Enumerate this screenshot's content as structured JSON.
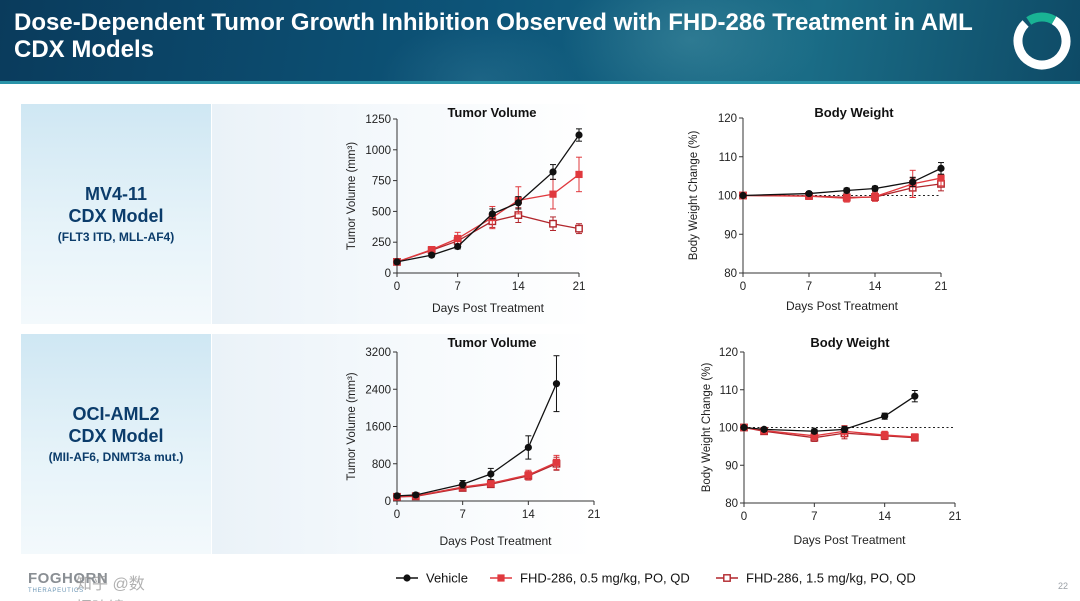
{
  "slide": {
    "title": "Dose-Dependent Tumor Growth Inhibition Observed with FHD-286 Treatment in AML CDX Models",
    "page_number": "22",
    "footer_brand": "FOGHORN",
    "footer_sub": "THERAPEUTICS",
    "watermark": "知乎 @数据瞭镜",
    "colors": {
      "header": "#0d5579",
      "vehicle": "#111111",
      "dose_low": "#e0393e",
      "dose_high": "#b2272d",
      "model_label": "#0b3c6b"
    }
  },
  "models": [
    {
      "name_line1": "MV4-11",
      "name_line2": "CDX Model",
      "mutations": "(FLT3 ITD, MLL-AF4)"
    },
    {
      "name_line1": "OCI-AML2",
      "name_line2": "CDX Model",
      "mutations": "(MII-AF6, DNMT3a mut.)"
    }
  ],
  "legend": [
    {
      "label": "Vehicle",
      "marker": "filled-circle",
      "color": "#111111"
    },
    {
      "label": "FHD-286, 0.5 mg/kg, PO, QD",
      "marker": "filled-square",
      "color": "#e0393e"
    },
    {
      "label": "FHD-286, 1.5 mg/kg, PO, QD",
      "marker": "open-square",
      "color": "#b2272d"
    }
  ],
  "chart_data": [
    {
      "id": "mv4-11-tumor-volume",
      "type": "line",
      "title": "Tumor Volume",
      "xlabel": "Days Post Treatment",
      "ylabel": "Tumor Volume (mm³)",
      "xlim": [
        0,
        21
      ],
      "xticks": [
        0,
        7,
        14,
        21
      ],
      "ylim": [
        0,
        1250
      ],
      "yticks": [
        0,
        250,
        500,
        750,
        1000,
        1250
      ],
      "series": [
        {
          "name": "Vehicle",
          "x": [
            0,
            4,
            7,
            11,
            14,
            18,
            21
          ],
          "y": [
            90,
            145,
            215,
            480,
            570,
            820,
            1120
          ],
          "err": [
            15,
            15,
            20,
            40,
            50,
            60,
            50
          ]
        },
        {
          "name": "FHD-286, 0.5 mg/kg, PO, QD",
          "x": [
            0,
            4,
            7,
            11,
            14,
            18,
            21
          ],
          "y": [
            90,
            190,
            280,
            450,
            590,
            640,
            800
          ],
          "err": [
            15,
            20,
            50,
            90,
            110,
            120,
            140
          ]
        },
        {
          "name": "FHD-286, 1.5 mg/kg, PO, QD",
          "x": [
            0,
            4,
            7,
            11,
            14,
            18,
            21
          ],
          "y": [
            90,
            185,
            260,
            420,
            470,
            400,
            360
          ],
          "err": [
            15,
            20,
            40,
            50,
            60,
            55,
            40
          ]
        }
      ]
    },
    {
      "id": "mv4-11-body-weight",
      "type": "line",
      "title": "Body Weight",
      "xlabel": "Days Post Treatment",
      "ylabel": "Body Weight Change (%)",
      "xlim": [
        0,
        21
      ],
      "xticks": [
        0,
        7,
        14,
        21
      ],
      "ylim": [
        80,
        120
      ],
      "yticks": [
        80,
        90,
        100,
        110,
        120
      ],
      "reference_line": 100,
      "series": [
        {
          "name": "Vehicle",
          "x": [
            0,
            7,
            11,
            14,
            18,
            21
          ],
          "y": [
            100,
            100.5,
            101.3,
            101.8,
            103.5,
            107
          ],
          "err": [
            0.3,
            0.5,
            0.6,
            0.6,
            1.2,
            1.5
          ]
        },
        {
          "name": "FHD-286, 0.5 mg/kg, PO, QD",
          "x": [
            0,
            7,
            11,
            14,
            18,
            21
          ],
          "y": [
            100,
            99.8,
            99.3,
            99.7,
            103,
            104.5
          ],
          "err": [
            0.3,
            0.8,
            1.0,
            1.2,
            3.5,
            2.0
          ]
        },
        {
          "name": "FHD-286, 1.5 mg/kg, PO, QD",
          "x": [
            0,
            7,
            11,
            14,
            18,
            21
          ],
          "y": [
            100,
            99.9,
            99.5,
            99.6,
            102,
            103
          ],
          "err": [
            0.3,
            0.6,
            0.8,
            1.0,
            2.5,
            1.8
          ]
        }
      ]
    },
    {
      "id": "oci-aml2-tumor-volume",
      "type": "line",
      "title": "Tumor Volume",
      "xlabel": "Days Post Treatment",
      "ylabel": "Tumor Volume (mm³)",
      "xlim": [
        0,
        21
      ],
      "xticks": [
        0,
        7,
        14,
        21
      ],
      "ylim": [
        0,
        3200
      ],
      "yticks": [
        0,
        800,
        1600,
        2400,
        3200
      ],
      "series": [
        {
          "name": "Vehicle",
          "x": [
            0,
            2,
            7,
            10,
            14,
            17
          ],
          "y": [
            110,
            130,
            360,
            580,
            1150,
            2520
          ],
          "err": [
            40,
            40,
            80,
            120,
            250,
            600
          ]
        },
        {
          "name": "FHD-286, 0.5 mg/kg, PO, QD",
          "x": [
            0,
            2,
            7,
            10,
            14,
            17
          ],
          "y": [
            90,
            110,
            300,
            380,
            560,
            830
          ],
          "err": [
            30,
            30,
            60,
            70,
            100,
            150
          ]
        },
        {
          "name": "FHD-286, 1.5 mg/kg, PO, QD",
          "x": [
            0,
            2,
            7,
            10,
            14,
            17
          ],
          "y": [
            90,
            100,
            280,
            360,
            540,
            800
          ],
          "err": [
            30,
            30,
            50,
            60,
            90,
            140
          ]
        }
      ]
    },
    {
      "id": "oci-aml2-body-weight",
      "type": "line",
      "title": "Body Weight",
      "xlabel": "Days Post Treatment",
      "ylabel": "Body Weight Change (%)",
      "xlim": [
        0,
        21
      ],
      "xticks": [
        0,
        7,
        14,
        21
      ],
      "ylim": [
        80,
        120
      ],
      "yticks": [
        80,
        90,
        100,
        110,
        120
      ],
      "reference_line": 100,
      "series": [
        {
          "name": "Vehicle",
          "x": [
            0,
            2,
            7,
            10,
            14,
            17
          ],
          "y": [
            100,
            99.5,
            99,
            99.5,
            103,
            108.3
          ],
          "err": [
            0.3,
            0.5,
            0.6,
            0.8,
            0.8,
            1.5
          ]
        },
        {
          "name": "FHD-286, 0.5 mg/kg, PO, QD",
          "x": [
            0,
            2,
            7,
            10,
            14,
            17
          ],
          "y": [
            100,
            99.2,
            97.8,
            99,
            98,
            97.5
          ],
          "err": [
            0.3,
            0.6,
            1.0,
            1.5,
            1.0,
            0.8
          ]
        },
        {
          "name": "FHD-286, 1.5 mg/kg, PO, QD",
          "x": [
            0,
            2,
            7,
            10,
            14,
            17
          ],
          "y": [
            100,
            99,
            97.3,
            98.5,
            97.8,
            97.3
          ],
          "err": [
            0.3,
            0.6,
            1.0,
            1.5,
            1.0,
            0.8
          ]
        }
      ]
    }
  ]
}
